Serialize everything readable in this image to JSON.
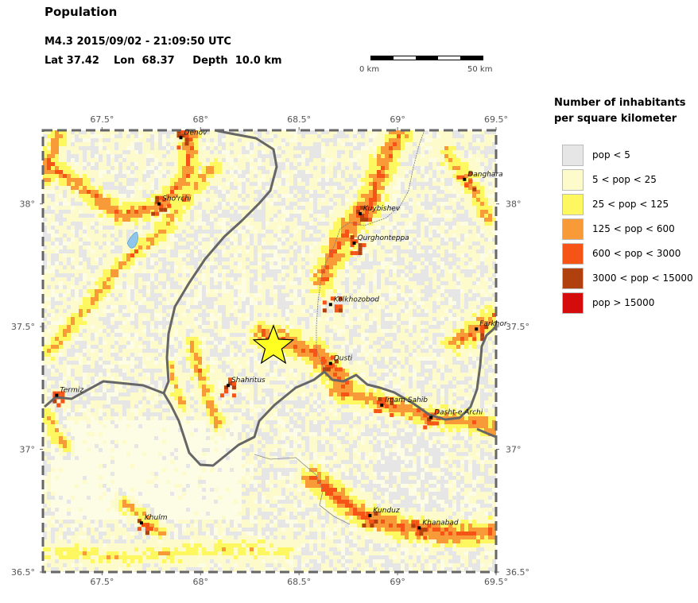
{
  "title": "Population",
  "event_line": "M4.3  2015/09/02 - 21:09:50 UTC",
  "location_line": "Lat 37.42    Lon  68.37     Depth  10.0 km",
  "scale": {
    "start_label": "0 km",
    "end_label": "50 km"
  },
  "legend": {
    "title_line1": "Number of inhabitants",
    "title_line2": "per square kilometer",
    "items": [
      {
        "label": "pop < 5",
        "color": "#e6e6e6"
      },
      {
        "label": "5 < pop < 25",
        "color": "#fdfbcc"
      },
      {
        "label": "25 < pop < 125",
        "color": "#fdf85f"
      },
      {
        "label": "125 < pop < 600",
        "color": "#f99a38"
      },
      {
        "label": "600 < pop < 3000",
        "color": "#f65417"
      },
      {
        "label": "3000 < pop < 15000",
        "color": "#b0400e"
      },
      {
        "label": "pop > 15000",
        "color": "#d40c0c"
      }
    ]
  },
  "map": {
    "lon_range": [
      67.2,
      69.5
    ],
    "lat_range": [
      36.5,
      38.3
    ],
    "lon_ticks": [
      {
        "value": 67.5,
        "label": "67.5°"
      },
      {
        "value": 68.0,
        "label": "68°"
      },
      {
        "value": 68.5,
        "label": "68.5°"
      },
      {
        "value": 69.0,
        "label": "69°"
      },
      {
        "value": 69.5,
        "label": "69.5°"
      }
    ],
    "lat_ticks": [
      {
        "value": 38.0,
        "label": "38°"
      },
      {
        "value": 37.5,
        "label": "37.5°"
      },
      {
        "value": 37.0,
        "label": "37°"
      },
      {
        "value": 36.5,
        "label": "36.5°"
      }
    ],
    "epicenter": {
      "lon": 68.37,
      "lat": 37.42
    },
    "cities": [
      {
        "name": "Denov",
        "lon": 67.9,
        "lat": 38.27
      },
      {
        "name": "Sho'rchi",
        "lon": 67.79,
        "lat": 38.0
      },
      {
        "name": "Kuybishev",
        "lon": 68.81,
        "lat": 37.96
      },
      {
        "name": "Qurghonteppa",
        "lon": 68.78,
        "lat": 37.84
      },
      {
        "name": "Kolkhozobod",
        "lon": 68.66,
        "lat": 37.59
      },
      {
        "name": "Dusti",
        "lon": 68.66,
        "lat": 37.35
      },
      {
        "name": "Shahritus",
        "lon": 68.14,
        "lat": 37.26
      },
      {
        "name": "Termiz",
        "lon": 67.27,
        "lat": 37.22
      },
      {
        "name": "Imam Sahib",
        "lon": 68.92,
        "lat": 37.18
      },
      {
        "name": "Dasht-e Archi",
        "lon": 69.17,
        "lat": 37.13
      },
      {
        "name": "Farkhor",
        "lon": 69.4,
        "lat": 37.49
      },
      {
        "name": "Danghara",
        "lon": 69.34,
        "lat": 38.1
      },
      {
        "name": "Khulm",
        "lon": 67.7,
        "lat": 36.7
      },
      {
        "name": "Kunduz",
        "lon": 68.86,
        "lat": 36.73
      },
      {
        "name": "Khanabad",
        "lon": 69.11,
        "lat": 36.68
      }
    ]
  }
}
